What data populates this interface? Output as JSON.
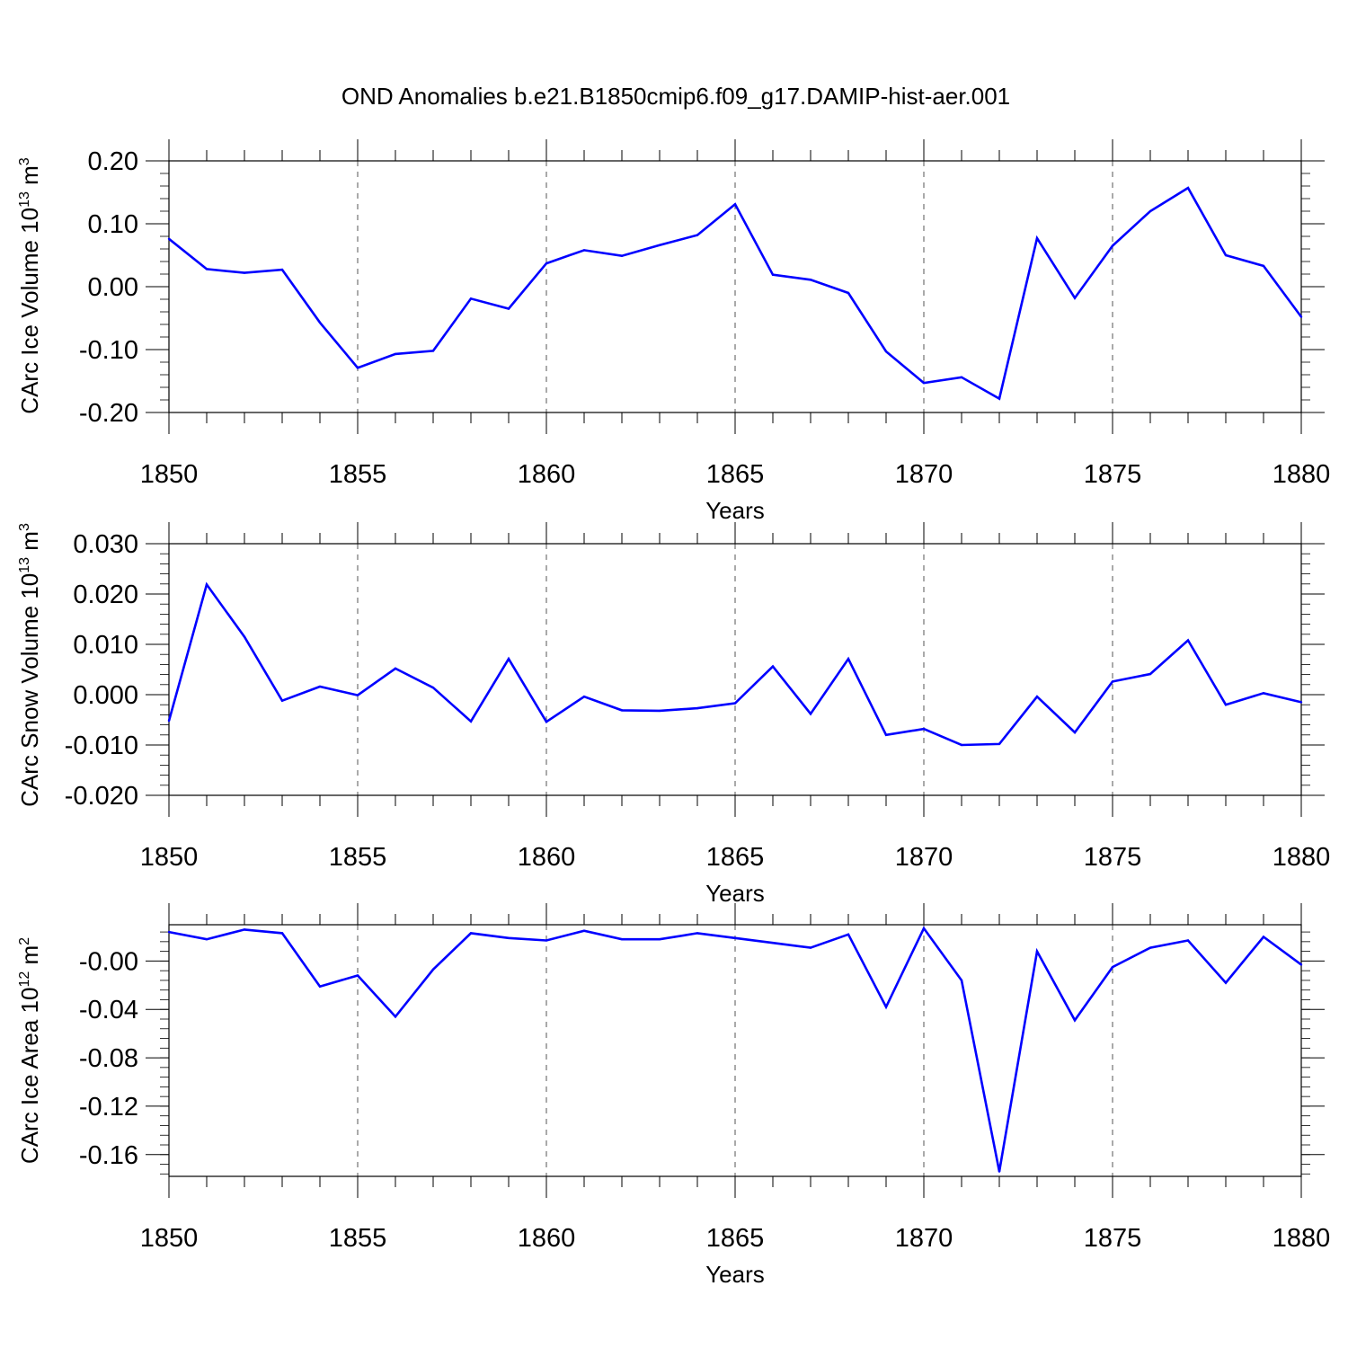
{
  "figure": {
    "title": "OND Anomalies b.e21.B1850cmip6.f09_g17.DAMIP-hist-aer.001"
  },
  "colors": {
    "line": "#0000ff",
    "axis": "#000000",
    "grid": "#555555"
  },
  "chart_data": [
    {
      "type": "line",
      "ylabel": "CArc Ice Volume 10",
      "ylabel_exp": "13",
      "ylabel_unit": " m",
      "ylabel_unit_exp": "3",
      "xlabel": "Years",
      "xlim": [
        1850,
        1880
      ],
      "ylim": [
        -0.2,
        0.2
      ],
      "x_ticks": [
        "1850",
        "1855",
        "1860",
        "1865",
        "1870",
        "1875",
        "1880"
      ],
      "y_ticks": [
        "0.20",
        "0.10",
        "0.00",
        "-0.10",
        "-0.20"
      ],
      "y_tick_values": [
        0.2,
        0.1,
        0.0,
        -0.1,
        -0.2
      ],
      "x": [
        1850,
        1851,
        1852,
        1853,
        1854,
        1855,
        1856,
        1857,
        1858,
        1859,
        1860,
        1861,
        1862,
        1863,
        1864,
        1865,
        1866,
        1867,
        1868,
        1869,
        1870,
        1871,
        1872,
        1873,
        1874,
        1875,
        1876,
        1877,
        1878,
        1879,
        1880
      ],
      "values": [
        0.076,
        0.028,
        0.022,
        0.027,
        -0.057,
        -0.129,
        -0.107,
        -0.102,
        -0.019,
        -0.035,
        0.037,
        0.058,
        0.049,
        0.066,
        0.082,
        0.131,
        0.019,
        0.011,
        -0.01,
        -0.103,
        -0.153,
        -0.144,
        -0.178,
        0.077,
        -0.018,
        0.065,
        0.12,
        0.157,
        0.05,
        0.033,
        -0.048
      ]
    },
    {
      "type": "line",
      "ylabel": "CArc Snow Volume 10",
      "ylabel_exp": "13",
      "ylabel_unit": " m",
      "ylabel_unit_exp": "3",
      "xlabel": "Years",
      "xlim": [
        1850,
        1880
      ],
      "ylim": [
        -0.02,
        0.03
      ],
      "x_ticks": [
        "1850",
        "1855",
        "1860",
        "1865",
        "1870",
        "1875",
        "1880"
      ],
      "y_ticks": [
        "0.030",
        "0.020",
        "0.010",
        "0.000",
        "-0.010",
        "-0.020"
      ],
      "y_tick_values": [
        0.03,
        0.02,
        0.01,
        0.0,
        -0.01,
        -0.02
      ],
      "x": [
        1850,
        1851,
        1852,
        1853,
        1854,
        1855,
        1856,
        1857,
        1858,
        1859,
        1860,
        1861,
        1862,
        1863,
        1864,
        1865,
        1866,
        1867,
        1868,
        1869,
        1870,
        1871,
        1872,
        1873,
        1874,
        1875,
        1876,
        1877,
        1878,
        1879,
        1880
      ],
      "values": [
        -0.0052,
        0.0219,
        0.0115,
        -0.0012,
        0.0016,
        -0.0001,
        0.0052,
        0.0014,
        -0.0053,
        0.0071,
        -0.0054,
        -0.0004,
        -0.0031,
        -0.0032,
        -0.0027,
        -0.0017,
        0.0056,
        -0.0038,
        0.0071,
        -0.008,
        -0.0068,
        -0.01,
        -0.0098,
        -0.0004,
        -0.0075,
        0.0026,
        0.0041,
        0.0108,
        -0.002,
        0.0003,
        -0.0015
      ]
    },
    {
      "type": "line",
      "ylabel": "CArc Ice Area 10",
      "ylabel_exp": "12",
      "ylabel_unit": " m",
      "ylabel_unit_exp": "2",
      "xlabel": "Years",
      "xlim": [
        1850,
        1880
      ],
      "ylim": [
        -0.178,
        0.03
      ],
      "x_ticks": [
        "1850",
        "1855",
        "1860",
        "1865",
        "1870",
        "1875",
        "1880"
      ],
      "y_ticks": [
        "-0.00",
        "-0.04",
        "-0.08",
        "-0.12",
        "-0.16"
      ],
      "y_tick_values": [
        0.0,
        -0.04,
        -0.08,
        -0.12,
        -0.16
      ],
      "x": [
        1850,
        1851,
        1852,
        1853,
        1854,
        1855,
        1856,
        1857,
        1858,
        1859,
        1860,
        1861,
        1862,
        1863,
        1864,
        1865,
        1866,
        1867,
        1868,
        1869,
        1870,
        1871,
        1872,
        1873,
        1874,
        1875,
        1876,
        1877,
        1878,
        1879,
        1880
      ],
      "values": [
        0.024,
        0.018,
        0.026,
        0.023,
        -0.021,
        -0.012,
        -0.046,
        -0.007,
        0.023,
        0.019,
        0.017,
        0.025,
        0.018,
        0.018,
        0.023,
        0.019,
        0.015,
        0.011,
        0.022,
        -0.038,
        0.027,
        -0.016,
        -0.174,
        0.008,
        -0.049,
        -0.005,
        0.011,
        0.017,
        -0.018,
        0.02,
        -0.003
      ]
    }
  ]
}
